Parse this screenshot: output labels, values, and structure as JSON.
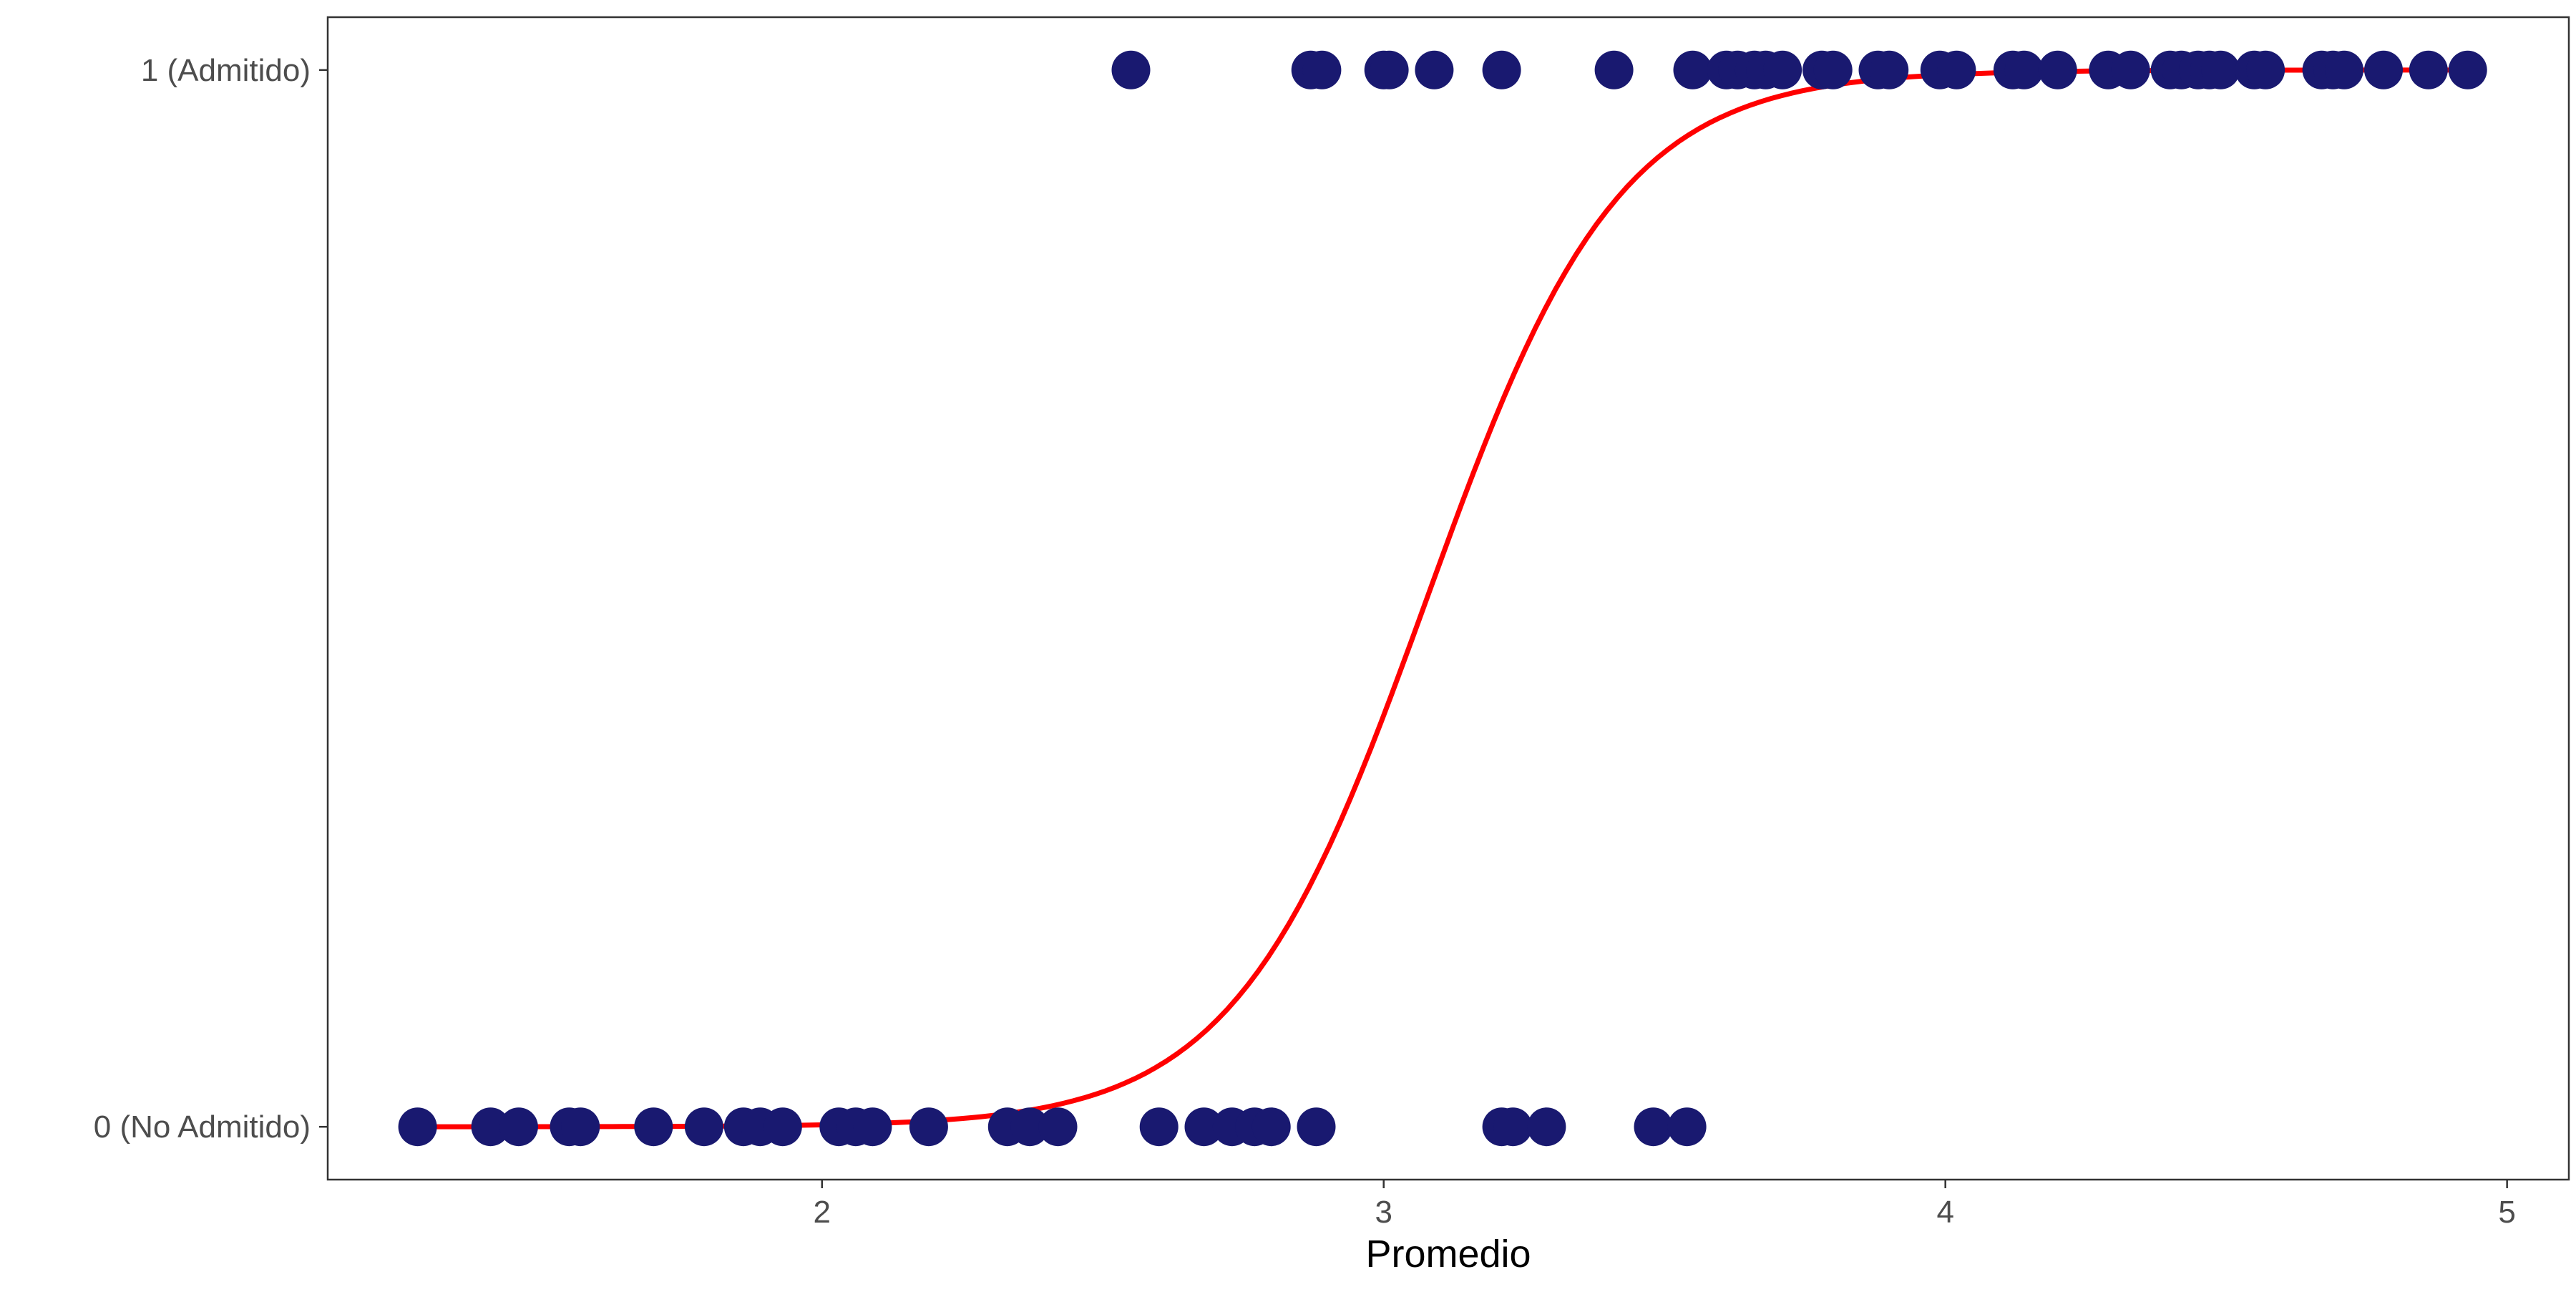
{
  "chart_data": {
    "type": "scatter",
    "title": "",
    "xlabel": "Promedio",
    "ylabel": "",
    "xlim": [
      1.12,
      5.11
    ],
    "ylim": [
      -0.05,
      1.05
    ],
    "x_ticks": [
      2,
      3,
      4,
      5
    ],
    "x_tick_labels": [
      "2",
      "3",
      "4",
      "5"
    ],
    "y_ticks": [
      0,
      1
    ],
    "y_tick_labels": [
      "0 (No Admitido)",
      "1 (Admitido)"
    ],
    "grid": false,
    "legend": "none",
    "points": {
      "color": "#191970",
      "admitted_x": [
        2.55,
        2.87,
        2.89,
        3.0,
        3.01,
        3.09,
        3.21,
        3.41,
        3.55,
        3.61,
        3.63,
        3.66,
        3.68,
        3.71,
        3.78,
        3.8,
        3.88,
        3.9,
        3.99,
        4.02,
        4.12,
        4.14,
        4.2,
        4.29,
        4.33,
        4.4,
        4.42,
        4.45,
        4.47,
        4.49,
        4.55,
        4.57,
        4.67,
        4.69,
        4.71,
        4.78,
        4.86,
        4.93
      ],
      "admitted_y": 1,
      "not_admitted_x": [
        1.28,
        1.41,
        1.46,
        1.55,
        1.57,
        1.7,
        1.79,
        1.86,
        1.89,
        1.93,
        2.03,
        2.06,
        2.09,
        2.19,
        2.33,
        2.37,
        2.42,
        2.6,
        2.68,
        2.73,
        2.77,
        2.8,
        2.88,
        3.21,
        3.23,
        3.29,
        3.48,
        3.54
      ],
      "not_admitted_y": 0
    },
    "curve": {
      "type": "logistic",
      "color": "#ff0000",
      "intercept": -18.0,
      "slope": 5.85,
      "x_range": [
        1.28,
        4.93
      ]
    }
  }
}
